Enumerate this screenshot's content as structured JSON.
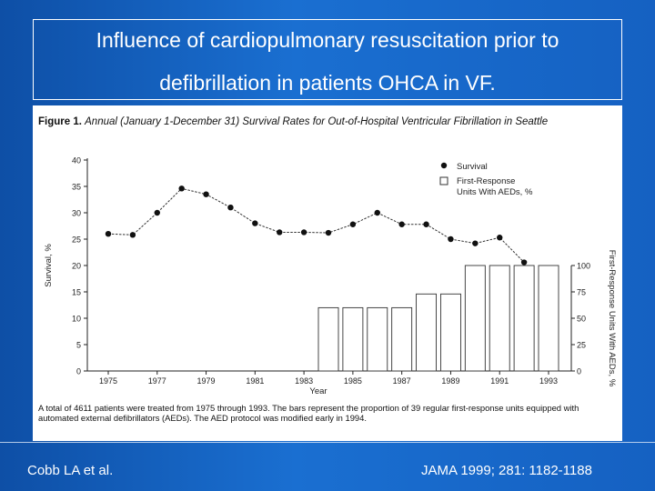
{
  "slide": {
    "title_line1": "Influence of cardiopulmonary resuscitation prior to",
    "title_line2": "defibrillation in patients OHCA in VF.",
    "citation_left": "Cobb LA et al.",
    "citation_right": "JAMA 1999; 281: 1182-1188"
  },
  "figure": {
    "label": "Figure 1.",
    "caption": "Annual (January 1-December 31) Survival Rates for Out-of-Hospital Ventricular Fibrillation in Seattle",
    "footnote": "A total of 4611 patients were treated from 1975 through 1993. The bars represent the proportion of 39 regular first-response units equipped with automated external defibrillators (AEDs). The AED protocol was modified early in 1994."
  },
  "chart_data": {
    "type": "bar",
    "xlabel": "Year",
    "ylabel": "Survival, %",
    "y2label": "First-Response Units With AEDs, %",
    "ylim": [
      0,
      40
    ],
    "y2lim": [
      0,
      100
    ],
    "yticks": [
      "0",
      "5",
      "10",
      "15",
      "20",
      "25",
      "30",
      "35",
      "40"
    ],
    "y2ticks": [
      "0",
      "25",
      "50",
      "75",
      "100"
    ],
    "x_tick_labels": [
      "1975",
      "1977",
      "1979",
      "1981",
      "1983",
      "1985",
      "1987",
      "1989",
      "1991",
      "1993"
    ],
    "legend_position": "top-right",
    "series": [
      {
        "name": "Survival",
        "type": "line",
        "x": [
          1975,
          1976,
          1977,
          1978,
          1979,
          1980,
          1981,
          1982,
          1983,
          1984,
          1985,
          1986,
          1987,
          1988,
          1989,
          1990,
          1991,
          1992,
          1993
        ],
        "values": [
          26,
          25.8,
          30,
          34.6,
          33.5,
          31,
          28,
          26.3,
          26.3,
          26.2,
          27.8,
          30,
          27.8,
          27.8,
          25,
          24.2,
          25.3,
          20.6,
          null
        ]
      },
      {
        "name": "First-Response Units With AEDs, %",
        "type": "bar",
        "x": [
          1984,
          1985,
          1986,
          1987,
          1988,
          1989,
          1990,
          1991,
          1992,
          1993
        ],
        "values": [
          60,
          60,
          60,
          60,
          73,
          73,
          100,
          100,
          100,
          100
        ]
      }
    ]
  }
}
